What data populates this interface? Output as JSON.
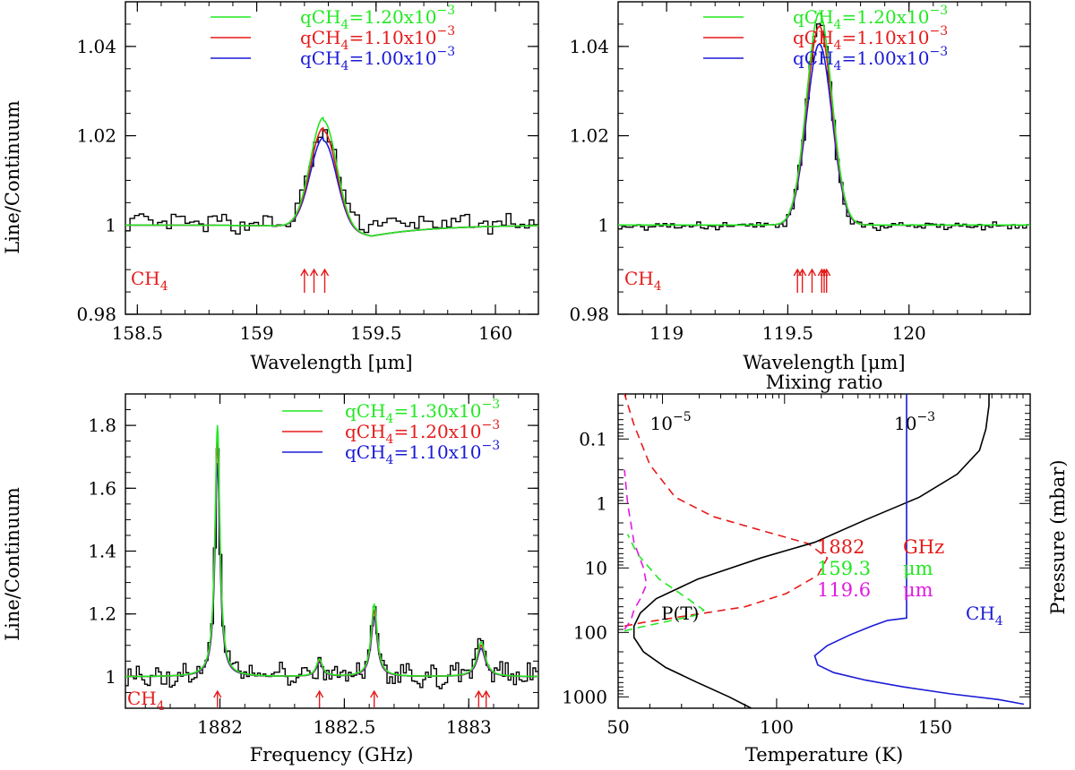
{
  "figure": {
    "ylabel_left": "Line/Continuum",
    "ylabel_right": "Pressure (mbar)",
    "colors": {
      "green": "#22e822",
      "red": "#e61a1a",
      "blue": "#1a1ad6",
      "magenta": "#e21ae2",
      "black": "#000000"
    }
  },
  "chart_data": [
    {
      "id": "tl",
      "type": "line",
      "xlabel": "Wavelength [μm]",
      "xlim": [
        158.45,
        160.18
      ],
      "ylim": [
        0.98,
        1.05
      ],
      "xticks": [
        {
          "v": 158.5,
          "label": "158.5"
        },
        {
          "v": 159,
          "label": "159"
        },
        {
          "v": 159.5,
          "label": "159.5"
        },
        {
          "v": 160,
          "label": "160"
        }
      ],
      "yticks": [
        {
          "v": 0.98,
          "label": "0.98"
        },
        {
          "v": 1.0,
          "label": "1"
        },
        {
          "v": 1.02,
          "label": "1.02"
        },
        {
          "v": 1.04,
          "label": "1.04"
        }
      ],
      "species_label": "CH",
      "species_sub": "4",
      "legend": [
        {
          "color": "green",
          "prefix": "qCH",
          "sub": "4",
          "mid": "=1.20x10",
          "sup": "−3"
        },
        {
          "color": "red",
          "prefix": "qCH",
          "sub": "4",
          "mid": "=1.10x10",
          "sup": "−3"
        },
        {
          "color": "blue",
          "prefix": "qCH",
          "sub": "4",
          "mid": "=1.00x10",
          "sup": "−3"
        }
      ],
      "line_centers": [
        159.2,
        159.24,
        159.285
      ],
      "series": [
        {
          "name": "qCH4=1.20x10^-3",
          "color": "green",
          "center": 159.28,
          "amp": 0.0245,
          "sigma": 0.055,
          "dip": 0.0025
        },
        {
          "name": "qCH4=1.10x10^-3",
          "color": "red",
          "center": 159.28,
          "amp": 0.0222,
          "sigma": 0.055,
          "dip": 0.0025
        },
        {
          "name": "qCH4=1.00x10^-3",
          "color": "blue",
          "center": 159.28,
          "amp": 0.02,
          "sigma": 0.055,
          "dip": 0.0025
        },
        {
          "name": "observed",
          "color": "black",
          "step": true,
          "center": 159.28,
          "amp": 0.021,
          "sigma": 0.055,
          "noise": 0.0016,
          "offset": 0.0003,
          "bins": 90
        }
      ]
    },
    {
      "id": "tr",
      "type": "line",
      "xlabel": "Wavelength [μm]",
      "xlim": [
        118.8,
        120.5
      ],
      "ylim": [
        0.98,
        1.05
      ],
      "xticks": [
        {
          "v": 119,
          "label": "119"
        },
        {
          "v": 119.5,
          "label": "119.5"
        },
        {
          "v": 120,
          "label": "120"
        }
      ],
      "yticks": [
        {
          "v": 0.98,
          "label": "0.98"
        },
        {
          "v": 1.0,
          "label": "1"
        },
        {
          "v": 1.02,
          "label": "1.02"
        },
        {
          "v": 1.04,
          "label": "1.04"
        }
      ],
      "species_label": "CH",
      "species_sub": "4",
      "legend": [
        {
          "color": "green",
          "prefix": "qCH",
          "sub": "4",
          "mid": "=1.20x10",
          "sup": "−3"
        },
        {
          "color": "red",
          "prefix": "qCH",
          "sub": "4",
          "mid": "=1.10x10",
          "sup": "−3"
        },
        {
          "color": "blue",
          "prefix": "qCH",
          "sub": "4",
          "mid": "=1.00x10",
          "sup": "−3"
        }
      ],
      "line_centers": [
        119.54,
        119.56,
        119.6,
        119.64,
        119.65,
        119.66
      ],
      "series": [
        {
          "name": "qCH4=1.20x10^-3",
          "color": "green",
          "center": 119.63,
          "amp": 0.0475,
          "sigma": 0.052,
          "dip": 0.0
        },
        {
          "name": "qCH4=1.10x10^-3",
          "color": "red",
          "center": 119.63,
          "amp": 0.0445,
          "sigma": 0.052,
          "dip": 0.0
        },
        {
          "name": "qCH4=1.00x10^-3",
          "color": "blue",
          "center": 119.63,
          "amp": 0.0405,
          "sigma": 0.052,
          "dip": 0.0
        },
        {
          "name": "observed",
          "color": "black",
          "step": true,
          "center": 119.63,
          "amp": 0.046,
          "sigma": 0.05,
          "noise": 0.0007,
          "offset": -0.0002,
          "bins": 110
        }
      ]
    },
    {
      "id": "bl",
      "type": "line",
      "xlabel": "Frequency (GHz)",
      "xlim": [
        1881.62,
        1883.28
      ],
      "ylim": [
        0.9,
        1.9
      ],
      "xticks": [
        {
          "v": 1882,
          "label": "1882"
        },
        {
          "v": 1882.5,
          "label": "1882.5"
        },
        {
          "v": 1883,
          "label": "1883"
        }
      ],
      "yticks": [
        {
          "v": 1.0,
          "label": "1"
        },
        {
          "v": 1.2,
          "label": "1.2"
        },
        {
          "v": 1.4,
          "label": "1.4"
        },
        {
          "v": 1.6,
          "label": "1.6"
        },
        {
          "v": 1.8,
          "label": "1.8"
        }
      ],
      "species_label": "CH",
      "species_sub": "4",
      "legend": [
        {
          "color": "green",
          "prefix": "qCH",
          "sub": "4",
          "mid": "=1.30x10",
          "sup": "−3"
        },
        {
          "color": "red",
          "prefix": "qCH",
          "sub": "4",
          "mid": "=1.20x10",
          "sup": "−3"
        },
        {
          "color": "blue",
          "prefix": "qCH",
          "sub": "4",
          "mid": "=1.10x10",
          "sup": "−3"
        }
      ],
      "line_centers": [
        1881.99,
        1882.4,
        1882.62,
        1883.04,
        1883.07
      ],
      "peaks": [
        {
          "x": 1881.99,
          "amps": [
            0.8,
            0.75,
            0.68
          ],
          "w": 0.012
        },
        {
          "x": 1882.4,
          "amps": [
            0.055,
            0.05,
            0.045
          ],
          "w": 0.015
        },
        {
          "x": 1882.62,
          "amps": [
            0.23,
            0.21,
            0.19
          ],
          "w": 0.015
        },
        {
          "x": 1883.05,
          "amps": [
            0.11,
            0.1,
            0.09
          ],
          "w": 0.02
        }
      ],
      "series": [
        {
          "name": "qCH4=1.30x10^-3",
          "color": "green",
          "idx": 0
        },
        {
          "name": "qCH4=1.20x10^-3",
          "color": "red",
          "idx": 1
        },
        {
          "name": "qCH4=1.10x10^-3",
          "color": "blue",
          "idx": 2
        },
        {
          "name": "observed",
          "color": "black",
          "step": true,
          "idx": 1,
          "noise": 0.03,
          "bins": 150
        }
      ]
    },
    {
      "id": "br",
      "type": "line",
      "xlabel": "Temperature (K)",
      "top_label": "Mixing ratio",
      "xlim": [
        50,
        180
      ],
      "ylim_log": [
        1500,
        0.02
      ],
      "xticks": [
        {
          "v": 50,
          "label": "50"
        },
        {
          "v": 100,
          "label": "100"
        },
        {
          "v": 150,
          "label": "150"
        }
      ],
      "yticks": [
        {
          "v": 0.1,
          "label": "0.1"
        },
        {
          "v": 1,
          "label": "1"
        },
        {
          "v": 10,
          "label": "10"
        },
        {
          "v": 100,
          "label": "100"
        },
        {
          "v": 1000,
          "label": "1000"
        }
      ],
      "mix_labels": [
        {
          "base": "10",
          "sup": "−5",
          "at_mix": 1e-05
        },
        {
          "base": "10",
          "sup": "−3",
          "at_mix": 0.001
        }
      ],
      "profile_labels": {
        "pt": "P(T)",
        "ch4": "CH",
        "ch4_sub": "4"
      },
      "contrib_legend": [
        {
          "color": "red",
          "value": "1882",
          "unit": "GHz"
        },
        {
          "color": "green",
          "value": "159.3",
          "unit": "μm"
        },
        {
          "color": "magenta",
          "value": "119.6",
          "unit": "μm"
        }
      ],
      "temperature_profile": [
        [
          92,
          1500
        ],
        [
          85,
          1000
        ],
        [
          75,
          600
        ],
        [
          65,
          350
        ],
        [
          58,
          200
        ],
        [
          55,
          120
        ],
        [
          55,
          80
        ],
        [
          57,
          50
        ],
        [
          62,
          30
        ],
        [
          75,
          15
        ],
        [
          95,
          7
        ],
        [
          112,
          4
        ],
        [
          128,
          1.8
        ],
        [
          145,
          0.8
        ],
        [
          157,
          0.35
        ],
        [
          164,
          0.15
        ],
        [
          166,
          0.07
        ],
        [
          167,
          0.03
        ],
        [
          167,
          0.02
        ]
      ],
      "ch4_profile": [
        [
          178,
          1300
        ],
        [
          170,
          1100
        ],
        [
          155,
          900
        ],
        [
          140,
          700
        ],
        [
          128,
          550
        ],
        [
          118,
          420
        ],
        [
          113,
          320
        ],
        [
          112,
          230
        ],
        [
          116,
          160
        ],
        [
          123,
          110
        ],
        [
          130,
          80
        ],
        [
          135,
          65
        ],
        [
          141,
          60
        ],
        [
          141,
          30
        ],
        [
          141,
          10
        ],
        [
          141,
          1
        ],
        [
          141,
          0.1
        ],
        [
          141,
          0.02
        ]
      ],
      "contribution_functions": [
        {
          "color": "red",
          "points": [
            [
              52,
              80
            ],
            [
              58,
              70
            ],
            [
              72,
              55
            ],
            [
              90,
              40
            ],
            [
              103,
              25
            ],
            [
              113,
              13
            ],
            [
              116,
              7
            ],
            [
              110,
              4.2
            ],
            [
              95,
              2.6
            ],
            [
              80,
              1.6
            ],
            [
              68,
              0.8
            ],
            [
              60,
              0.25
            ],
            [
              55,
              0.06
            ],
            [
              52,
              0.02
            ]
          ]
        },
        {
          "color": "green",
          "points": [
            [
              52,
              95
            ],
            [
              56,
              85
            ],
            [
              64,
              70
            ],
            [
              74,
              55
            ],
            [
              77,
              45
            ],
            [
              72,
              30
            ],
            [
              63,
              15
            ],
            [
              56,
              6
            ],
            [
              53,
              3
            ]
          ]
        },
        {
          "color": "magenta",
          "points": [
            [
              52,
              90
            ],
            [
              54,
              65
            ],
            [
              55,
              45
            ],
            [
              57,
              30
            ],
            [
              59,
              18
            ],
            [
              58,
              10
            ],
            [
              55,
              4
            ],
            [
              53,
              1
            ],
            [
              52,
              0.3
            ]
          ]
        }
      ]
    }
  ]
}
